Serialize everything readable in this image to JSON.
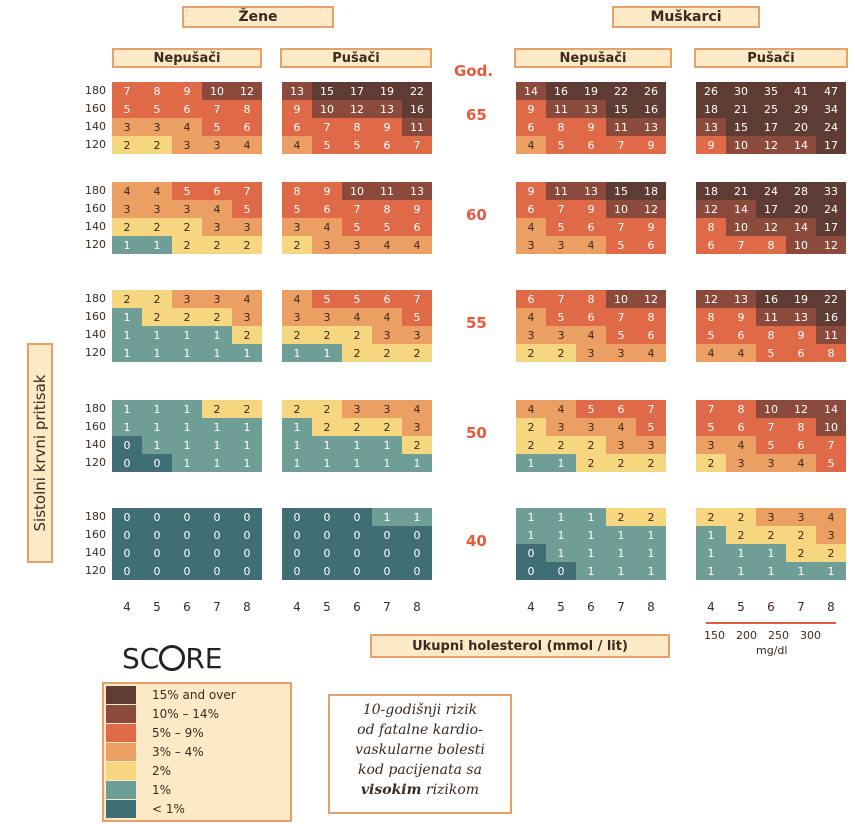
{
  "chart_data": {
    "type": "heatmap",
    "title": "SCORE",
    "ylabel": "Sistolni krvni pritisak",
    "xlabel": "Ukupni holesterol (mmol / lit)",
    "age_label": "God.",
    "genders": [
      "Žene",
      "Muškarci"
    ],
    "smoking": [
      "Nepušači",
      "Pušači"
    ],
    "ages": [
      "65",
      "60",
      "55",
      "50",
      "40"
    ],
    "bp_values": [
      "180",
      "160",
      "140",
      "120"
    ],
    "chol_mmol": [
      "4",
      "5",
      "6",
      "7",
      "8"
    ],
    "chol_mgdl": [
      "150",
      "200",
      "250",
      "300"
    ],
    "chol_mgdl_unit": "mg/dl",
    "grids": {
      "zene_nepusaci": {
        "65": [
          [
            7,
            8,
            9,
            10,
            12
          ],
          [
            5,
            5,
            6,
            7,
            8
          ],
          [
            3,
            3,
            4,
            5,
            6
          ],
          [
            2,
            2,
            3,
            3,
            4
          ]
        ],
        "60": [
          [
            4,
            4,
            5,
            6,
            7
          ],
          [
            3,
            3,
            3,
            4,
            5
          ],
          [
            2,
            2,
            2,
            3,
            3
          ],
          [
            1,
            1,
            2,
            2,
            2
          ]
        ],
        "55": [
          [
            2,
            2,
            3,
            3,
            4
          ],
          [
            1,
            2,
            2,
            2,
            3
          ],
          [
            1,
            1,
            1,
            1,
            2
          ],
          [
            1,
            1,
            1,
            1,
            1
          ]
        ],
        "50": [
          [
            1,
            1,
            1,
            2,
            2
          ],
          [
            1,
            1,
            1,
            1,
            1
          ],
          [
            0,
            1,
            1,
            1,
            1
          ],
          [
            0,
            0,
            1,
            1,
            1
          ]
        ],
        "40": [
          [
            0,
            0,
            0,
            0,
            0
          ],
          [
            0,
            0,
            0,
            0,
            0
          ],
          [
            0,
            0,
            0,
            0,
            0
          ],
          [
            0,
            0,
            0,
            0,
            0
          ]
        ]
      },
      "zene_pusaci": {
        "65": [
          [
            13,
            15,
            17,
            19,
            22
          ],
          [
            9,
            10,
            12,
            13,
            16
          ],
          [
            6,
            7,
            8,
            9,
            11
          ],
          [
            4,
            5,
            5,
            6,
            7
          ]
        ],
        "60": [
          [
            8,
            9,
            10,
            11,
            13
          ],
          [
            5,
            6,
            7,
            8,
            9
          ],
          [
            3,
            4,
            5,
            5,
            6
          ],
          [
            2,
            3,
            3,
            4,
            4
          ]
        ],
        "55": [
          [
            4,
            5,
            5,
            6,
            7
          ],
          [
            3,
            3,
            4,
            4,
            5
          ],
          [
            2,
            2,
            2,
            3,
            3
          ],
          [
            1,
            1,
            2,
            2,
            2
          ]
        ],
        "50": [
          [
            2,
            2,
            3,
            3,
            4
          ],
          [
            1,
            2,
            2,
            2,
            3
          ],
          [
            1,
            1,
            1,
            1,
            2
          ],
          [
            1,
            1,
            1,
            1,
            1
          ]
        ],
        "40": [
          [
            0,
            0,
            0,
            1,
            1
          ],
          [
            0,
            0,
            0,
            0,
            0
          ],
          [
            0,
            0,
            0,
            0,
            0
          ],
          [
            0,
            0,
            0,
            0,
            0
          ]
        ]
      },
      "muskarci_nepusaci": {
        "65": [
          [
            14,
            16,
            19,
            22,
            26
          ],
          [
            9,
            11,
            13,
            15,
            16
          ],
          [
            6,
            8,
            9,
            11,
            13
          ],
          [
            4,
            5,
            6,
            7,
            9
          ]
        ],
        "60": [
          [
            9,
            11,
            13,
            15,
            18
          ],
          [
            6,
            7,
            9,
            10,
            12
          ],
          [
            4,
            5,
            6,
            7,
            9
          ],
          [
            3,
            3,
            4,
            5,
            6
          ]
        ],
        "55": [
          [
            6,
            7,
            8,
            10,
            12
          ],
          [
            4,
            5,
            6,
            7,
            8
          ],
          [
            3,
            3,
            4,
            5,
            6
          ],
          [
            2,
            2,
            3,
            3,
            4
          ]
        ],
        "50": [
          [
            4,
            4,
            5,
            6,
            7
          ],
          [
            2,
            3,
            3,
            4,
            5
          ],
          [
            2,
            2,
            2,
            3,
            3
          ],
          [
            1,
            1,
            2,
            2,
            2
          ]
        ],
        "40": [
          [
            1,
            1,
            1,
            2,
            2
          ],
          [
            1,
            1,
            1,
            1,
            1
          ],
          [
            0,
            1,
            1,
            1,
            1
          ],
          [
            0,
            0,
            1,
            1,
            1
          ]
        ]
      },
      "muskarci_pusaci": {
        "65": [
          [
            26,
            30,
            35,
            41,
            47
          ],
          [
            18,
            21,
            25,
            29,
            34
          ],
          [
            13,
            15,
            17,
            20,
            24
          ],
          [
            9,
            10,
            12,
            14,
            17
          ]
        ],
        "60": [
          [
            18,
            21,
            24,
            28,
            33
          ],
          [
            12,
            14,
            17,
            20,
            24
          ],
          [
            8,
            10,
            12,
            14,
            17
          ],
          [
            6,
            7,
            8,
            10,
            12
          ]
        ],
        "55": [
          [
            12,
            13,
            16,
            19,
            22
          ],
          [
            8,
            9,
            11,
            13,
            16
          ],
          [
            5,
            6,
            8,
            9,
            11
          ],
          [
            4,
            4,
            5,
            6,
            8
          ]
        ],
        "50": [
          [
            7,
            8,
            10,
            12,
            14
          ],
          [
            5,
            6,
            7,
            8,
            10
          ],
          [
            3,
            4,
            5,
            6,
            7
          ],
          [
            2,
            3,
            3,
            4,
            5
          ]
        ],
        "40": [
          [
            2,
            2,
            3,
            3,
            4
          ],
          [
            1,
            2,
            2,
            2,
            3
          ],
          [
            1,
            1,
            1,
            2,
            2
          ],
          [
            1,
            1,
            1,
            1,
            1
          ]
        ]
      }
    },
    "legend": [
      {
        "label": "15% and over",
        "color": "#5e3b33"
      },
      {
        "label": "10% – 14%",
        "color": "#8b4a3c"
      },
      {
        "label": "5% – 9%",
        "color": "#e06a47"
      },
      {
        "label": "3% – 4%",
        "color": "#eb9f63"
      },
      {
        "label": "2%",
        "color": "#f6d77f"
      },
      {
        "label": "1%",
        "color": "#6f9e97"
      },
      {
        "label": "< 1%",
        "color": "#3f6f74"
      }
    ]
  },
  "note": {
    "line1": "10-godišnji rizik",
    "line2": "od fatalne kardio-",
    "line3": "vaskularne bolesti",
    "line4": "kod pacijenata sa",
    "bold": "visokim",
    "line5_rest": " rizikom"
  }
}
